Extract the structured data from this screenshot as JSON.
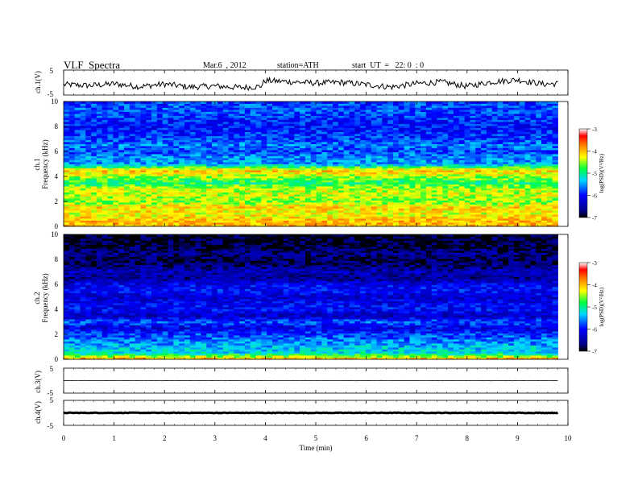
{
  "header": {
    "title": "VLF  Spectra",
    "date": "Mar.6  , 2012",
    "station": "station=ATH",
    "start": "start  UT  =   22: 0  : 0"
  },
  "chart_data": [
    {
      "type": "line",
      "panel": "ch1-waveform",
      "ylabel": "ch.1(V)",
      "ytick_labels": [
        "5",
        "-5"
      ],
      "ylim": [
        -5,
        5
      ],
      "x": [
        0,
        0.5,
        1,
        1.5,
        2,
        2.5,
        3,
        3.5,
        3.9,
        4,
        4.5,
        5,
        5.5,
        6,
        6.5,
        7,
        7.5,
        8,
        8.5,
        9,
        9.5,
        9.8
      ],
      "y": [
        -0.8,
        -1.2,
        -0.5,
        -1.6,
        -0.6,
        -1.8,
        -1.4,
        -2.0,
        -1.6,
        0.8,
        0.3,
        -0.2,
        0.1,
        -0.8,
        -1.8,
        -0.4,
        0.2,
        -1.5,
        0.3,
        1.1,
        -0.6,
        -0.4
      ],
      "color": "#000000"
    },
    {
      "type": "heatmap",
      "panel": "ch1-spectrogram",
      "ylabel": "Frequency  (kHz)",
      "channel_label": "ch.1",
      "ylim": [
        0,
        10
      ],
      "xlim": [
        0,
        10
      ],
      "ytick_labels": [
        "0",
        "2",
        "4",
        "6",
        "8",
        "10"
      ],
      "colorbar": {
        "label": "log(PSD)(V²/Hz)",
        "range": [
          -7,
          -3
        ],
        "tick_labels": [
          "-3",
          "-4",
          "-5",
          "-6",
          "-7"
        ]
      },
      "band_levels_by_khz": [
        -4.0,
        -4.0,
        -4.3,
        -4.1,
        -4.6,
        -4.4,
        -4.4,
        -4.9,
        -4.5,
        -4.0,
        -5.5,
        -5.5,
        -5.8,
        -5.6,
        -5.8,
        -5.9,
        -6.0,
        -5.9,
        -5.8,
        -5.7,
        -5.8
      ]
    },
    {
      "type": "heatmap",
      "panel": "ch2-spectrogram",
      "ylabel": "Frequency  (kHz)",
      "channel_label": "ch.2",
      "ylim": [
        0,
        10
      ],
      "xlim": [
        0,
        10
      ],
      "ytick_labels": [
        "0",
        "2",
        "4",
        "6",
        "8",
        "10"
      ],
      "colorbar": {
        "label": "log(PSD)(V²/Hz)",
        "range": [
          -7,
          -3
        ],
        "tick_labels": [
          "-3",
          "-4",
          "-5",
          "-6",
          "-7"
        ]
      },
      "band_levels_by_khz": [
        -3.8,
        -5.2,
        -5.4,
        -5.6,
        -5.8,
        -6.2,
        -5.7,
        -6.4,
        -6.0,
        -6.1,
        -6.3,
        -6.0,
        -6.1,
        -6.6,
        -6.4,
        -6.7,
        -6.8,
        -6.6,
        -6.9,
        -6.9,
        -7.0
      ]
    },
    {
      "type": "line",
      "panel": "ch3-waveform",
      "ylabel": "ch.3(V)",
      "ytick_labels": [
        "5",
        "-5"
      ],
      "ylim": [
        -5,
        5
      ],
      "x": [
        0,
        9.8
      ],
      "y": [
        0,
        0
      ]
    },
    {
      "type": "line",
      "panel": "ch4-waveform",
      "ylabel": "ch.4(V)",
      "ytick_labels": [
        "5",
        "-5"
      ],
      "ylim": [
        -5,
        5
      ],
      "x": [
        0,
        9.8
      ],
      "y": [
        0,
        0
      ]
    }
  ],
  "xaxis": {
    "label": "Time  (min)",
    "xlim": [
      0,
      10
    ],
    "tick_labels": [
      "0",
      "1",
      "2",
      "3",
      "4",
      "5",
      "6",
      "7",
      "8",
      "9",
      "10"
    ]
  }
}
